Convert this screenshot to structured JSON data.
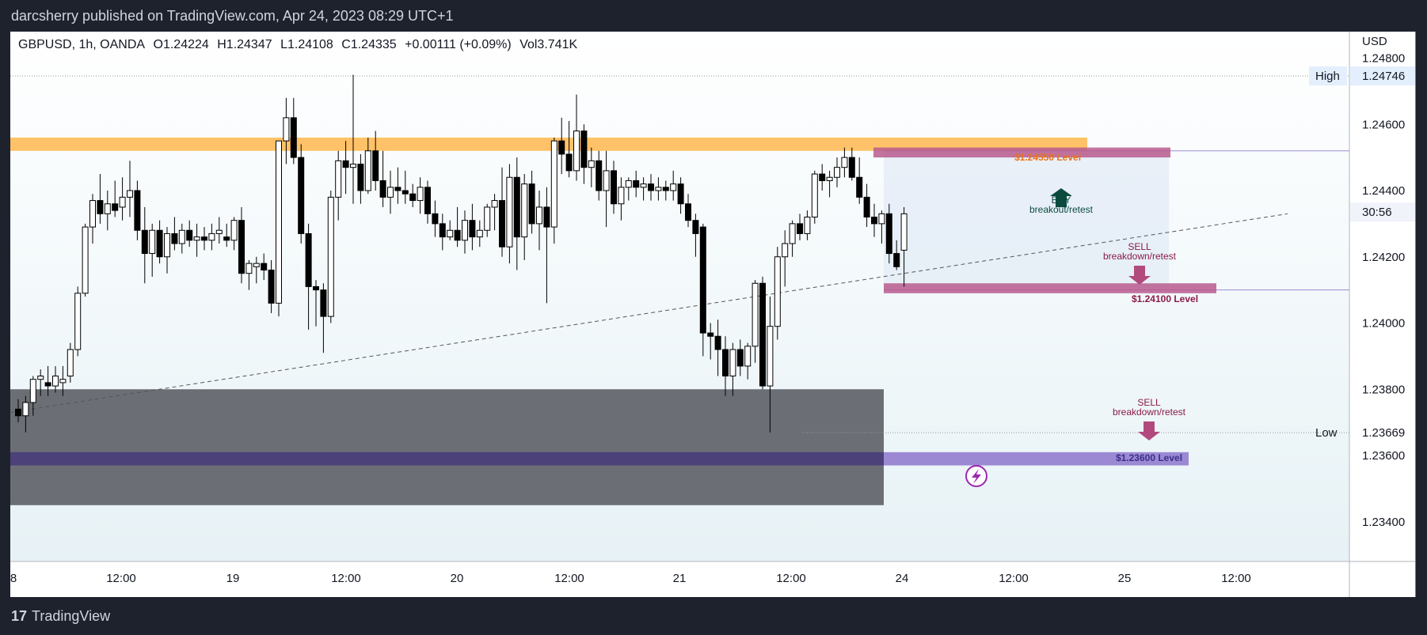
{
  "header": {
    "publish_line": "darcsherry published on TradingView.com, Apr 24, 2023 08:29 UTC+1"
  },
  "legend": {
    "symbol": "GBPUSD, 1h, OANDA",
    "open": "O1.24224",
    "high": "H1.24347",
    "low": "L1.24108",
    "close": "C1.24335",
    "change": "+0.00111 (+0.09%)",
    "volume": "Vol3.741K"
  },
  "price_axis": {
    "currency": "USD",
    "ticks": [
      "1.24800",
      "1.24600",
      "1.24400",
      "1.24200",
      "1.24000",
      "1.23800",
      "1.23600",
      "1.23400"
    ],
    "high_label": "High",
    "high_value": "1.24746",
    "low_label": "Low",
    "low_value": "1.23669",
    "countdown": "30:56"
  },
  "time_axis": {
    "ticks": [
      "8",
      "12:00",
      "19",
      "12:00",
      "20",
      "12:00",
      "21",
      "12:00",
      "24",
      "12:00",
      "25",
      "12:00"
    ]
  },
  "annotations": {
    "level_top": "$1.24550 Level",
    "buy_title": "BUY",
    "buy_sub": "breakout/retest",
    "sell1_title": "SELL",
    "sell1_sub": "breakdown/retest",
    "level_mid": "$1.24100 Level",
    "sell2_title": "SELL",
    "sell2_sub": "breakdown/retest",
    "level_low": "$1.23600 Level"
  },
  "colors": {
    "up_candle": "#ffffff",
    "down_candle": "#000000",
    "resistance_zone": "#ffb74d",
    "pink_zone": "#b95b8d",
    "purple_zone": "#9c89d4",
    "gray_zone": "#6b6e75",
    "buy_arrow": "#0b4b3e",
    "sell_arrow": "#b24a7e",
    "level_top_text": "#e8741a",
    "level_mid_text": "#8a1b4a",
    "level_low_text": "#3a2f8a"
  },
  "footer": {
    "brand": "TradingView",
    "logo_mark": "17"
  },
  "chart_data": {
    "type": "candlestick",
    "symbol": "GBPUSD",
    "timeframe": "1h",
    "ylim": [
      1.2328,
      1.2488
    ],
    "levels": [
      1.2455,
      1.241,
      1.236
    ],
    "high": 1.24746,
    "low": 1.23669,
    "candles": [
      [
        1.2374,
        1.2377,
        1.237,
        1.2372
      ],
      [
        1.2372,
        1.2378,
        1.2367,
        1.2376
      ],
      [
        1.2376,
        1.2384,
        1.2372,
        1.2383
      ],
      [
        1.2383,
        1.2386,
        1.2378,
        1.2384
      ],
      [
        1.2382,
        1.2387,
        1.2378,
        1.2381
      ],
      [
        1.2381,
        1.2387,
        1.2379,
        1.2384
      ],
      [
        1.2382,
        1.2387,
        1.2378,
        1.2383
      ],
      [
        1.2384,
        1.2394,
        1.2382,
        1.2392
      ],
      [
        1.2392,
        1.2411,
        1.239,
        1.2409
      ],
      [
        1.2409,
        1.243,
        1.2408,
        1.2429
      ],
      [
        1.2429,
        1.2439,
        1.2424,
        1.2437
      ],
      [
        1.2437,
        1.2445,
        1.243,
        1.2433
      ],
      [
        1.2433,
        1.244,
        1.2428,
        1.2436
      ],
      [
        1.2436,
        1.2443,
        1.2432,
        1.2434
      ],
      [
        1.2435,
        1.2444,
        1.2431,
        1.2438
      ],
      [
        1.2438,
        1.2449,
        1.2432,
        1.244
      ],
      [
        1.244,
        1.2443,
        1.2425,
        1.2428
      ],
      [
        1.2428,
        1.2435,
        1.2412,
        1.2421
      ],
      [
        1.2421,
        1.243,
        1.2414,
        1.2428
      ],
      [
        1.2428,
        1.2431,
        1.2418,
        1.242
      ],
      [
        1.242,
        1.2429,
        1.2415,
        1.2427
      ],
      [
        1.2427,
        1.2432,
        1.2422,
        1.2424
      ],
      [
        1.2424,
        1.243,
        1.2421,
        1.2428
      ],
      [
        1.2428,
        1.2431,
        1.2423,
        1.2425
      ],
      [
        1.2425,
        1.243,
        1.242,
        1.2426
      ],
      [
        1.2426,
        1.2429,
        1.2422,
        1.2425
      ],
      [
        1.2425,
        1.243,
        1.2422,
        1.2427
      ],
      [
        1.2427,
        1.2432,
        1.2424,
        1.2428
      ],
      [
        1.2426,
        1.243,
        1.2423,
        1.2425
      ],
      [
        1.2425,
        1.2432,
        1.2422,
        1.2431
      ],
      [
        1.2431,
        1.2435,
        1.2412,
        1.2415
      ],
      [
        1.2415,
        1.2419,
        1.241,
        1.2418
      ],
      [
        1.2417,
        1.242,
        1.2412,
        1.2418
      ],
      [
        1.2418,
        1.2421,
        1.2413,
        1.2416
      ],
      [
        1.2416,
        1.2419,
        1.2403,
        1.2406
      ],
      [
        1.2406,
        1.2455,
        1.2402,
        1.2455
      ],
      [
        1.2455,
        1.2468,
        1.2448,
        1.2462
      ],
      [
        1.2462,
        1.2468,
        1.2448,
        1.245
      ],
      [
        1.245,
        1.2454,
        1.2424,
        1.2427
      ],
      [
        1.2427,
        1.243,
        1.2398,
        1.2411
      ],
      [
        1.2411,
        1.2413,
        1.2399,
        1.241
      ],
      [
        1.241,
        1.2412,
        1.2391,
        1.2402
      ],
      [
        1.2402,
        1.244,
        1.24,
        1.2438
      ],
      [
        1.2438,
        1.2452,
        1.2431,
        1.2449
      ],
      [
        1.2449,
        1.2455,
        1.2439,
        1.2447
      ],
      [
        1.2447,
        1.2475,
        1.2436,
        1.2448
      ],
      [
        1.2448,
        1.2451,
        1.2436,
        1.244
      ],
      [
        1.244,
        1.2456,
        1.2439,
        1.2452
      ],
      [
        1.2452,
        1.2458,
        1.244,
        1.2443
      ],
      [
        1.2443,
        1.2452,
        1.2435,
        1.2438
      ],
      [
        1.2438,
        1.2446,
        1.2433,
        1.2441
      ],
      [
        1.2441,
        1.2447,
        1.2436,
        1.244
      ],
      [
        1.244,
        1.2446,
        1.2436,
        1.2439
      ],
      [
        1.2439,
        1.2442,
        1.2435,
        1.2437
      ],
      [
        1.2437,
        1.2444,
        1.2433,
        1.2441
      ],
      [
        1.2441,
        1.2443,
        1.243,
        1.2433
      ],
      [
        1.2433,
        1.2437,
        1.2426,
        1.243
      ],
      [
        1.243,
        1.2433,
        1.2422,
        1.2426
      ],
      [
        1.2426,
        1.2431,
        1.2425,
        1.2428
      ],
      [
        1.2428,
        1.2435,
        1.2423,
        1.2425
      ],
      [
        1.2425,
        1.2434,
        1.2421,
        1.2431
      ],
      [
        1.2431,
        1.2436,
        1.2422,
        1.2426
      ],
      [
        1.2426,
        1.2431,
        1.2423,
        1.2428
      ],
      [
        1.2428,
        1.2436,
        1.2426,
        1.2435
      ],
      [
        1.2435,
        1.2439,
        1.2428,
        1.2437
      ],
      [
        1.2437,
        1.2447,
        1.242,
        1.2423
      ],
      [
        1.2423,
        1.2448,
        1.2418,
        1.2444
      ],
      [
        1.2444,
        1.245,
        1.2416,
        1.2426
      ],
      [
        1.2426,
        1.2445,
        1.2419,
        1.2442
      ],
      [
        1.2442,
        1.2446,
        1.2427,
        1.243
      ],
      [
        1.243,
        1.244,
        1.2422,
        1.2435
      ],
      [
        1.2435,
        1.2441,
        1.2406,
        1.2429
      ],
      [
        1.2429,
        1.2456,
        1.2424,
        1.2455
      ],
      [
        1.2455,
        1.2462,
        1.2445,
        1.2451
      ],
      [
        1.2451,
        1.2461,
        1.2444,
        1.2446
      ],
      [
        1.2446,
        1.2469,
        1.2443,
        1.2458
      ],
      [
        1.2458,
        1.246,
        1.2442,
        1.2447
      ],
      [
        1.2447,
        1.2453,
        1.2441,
        1.2449
      ],
      [
        1.2449,
        1.2452,
        1.2437,
        1.244
      ],
      [
        1.244,
        1.2452,
        1.2429,
        1.2446
      ],
      [
        1.2446,
        1.2449,
        1.2433,
        1.2436
      ],
      [
        1.2436,
        1.2444,
        1.2431,
        1.2441
      ],
      [
        1.2441,
        1.2444,
        1.2437,
        1.2443
      ],
      [
        1.2443,
        1.2446,
        1.2438,
        1.2441
      ],
      [
        1.2441,
        1.2444,
        1.2437,
        1.2442
      ],
      [
        1.2442,
        1.2445,
        1.2437,
        1.244
      ],
      [
        1.244,
        1.2444,
        1.2437,
        1.2441
      ],
      [
        1.2441,
        1.2443,
        1.2437,
        1.244
      ],
      [
        1.244,
        1.2446,
        1.2437,
        1.2442
      ],
      [
        1.2442,
        1.2444,
        1.2433,
        1.2436
      ],
      [
        1.2436,
        1.2439,
        1.2429,
        1.2431
      ],
      [
        1.2431,
        1.2433,
        1.242,
        1.2427
      ],
      [
        1.2429,
        1.243,
        1.239,
        1.2397
      ],
      [
        1.2397,
        1.24,
        1.2389,
        1.2396
      ],
      [
        1.2396,
        1.2401,
        1.2384,
        1.2392
      ],
      [
        1.2392,
        1.2396,
        1.2378,
        1.2384
      ],
      [
        1.2384,
        1.2394,
        1.2378,
        1.2392
      ],
      [
        1.2392,
        1.2395,
        1.2384,
        1.2387
      ],
      [
        1.2387,
        1.2394,
        1.2383,
        1.2393
      ],
      [
        1.2393,
        1.2413,
        1.2388,
        1.2412
      ],
      [
        1.2412,
        1.2414,
        1.238,
        1.2381
      ],
      [
        1.2381,
        1.2408,
        1.2367,
        1.2399
      ],
      [
        1.2399,
        1.2423,
        1.2395,
        1.242
      ],
      [
        1.242,
        1.2428,
        1.2411,
        1.2424
      ],
      [
        1.2424,
        1.2431,
        1.242,
        1.243
      ],
      [
        1.243,
        1.2433,
        1.2425,
        1.2427
      ],
      [
        1.2427,
        1.2434,
        1.2425,
        1.2432
      ],
      [
        1.2432,
        1.2446,
        1.243,
        1.2445
      ],
      [
        1.2445,
        1.2448,
        1.244,
        1.2443
      ],
      [
        1.2443,
        1.2446,
        1.2438,
        1.2444
      ],
      [
        1.2444,
        1.245,
        1.2441,
        1.2447
      ],
      [
        1.2447,
        1.2453,
        1.2444,
        1.245
      ],
      [
        1.245,
        1.2453,
        1.2443,
        1.2444
      ],
      [
        1.2444,
        1.245,
        1.2436,
        1.2438
      ],
      [
        1.2438,
        1.2442,
        1.2429,
        1.2432
      ],
      [
        1.2432,
        1.2436,
        1.2426,
        1.243
      ],
      [
        1.243,
        1.2434,
        1.2424,
        1.2433
      ],
      [
        1.2433,
        1.2436,
        1.2418,
        1.2421
      ],
      [
        1.2421,
        1.2425,
        1.2416,
        1.2417
      ],
      [
        1.2422,
        1.2435,
        1.2411,
        1.2433
      ]
    ]
  }
}
